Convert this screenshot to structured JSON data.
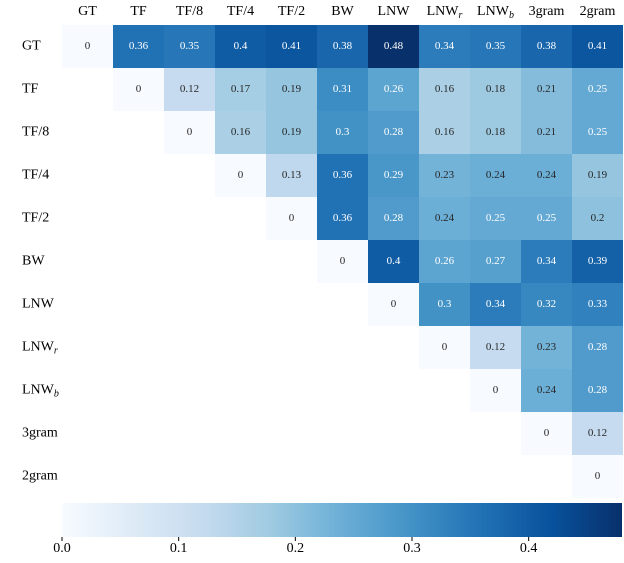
{
  "chart_data": {
    "type": "heatmap",
    "x_categories": [
      "GT",
      "TF",
      "TF/8",
      "TF/4",
      "TF/2",
      "BW",
      "LNW",
      "LNWr",
      "LNWb",
      "3gram",
      "2gram"
    ],
    "y_categories": [
      "GT",
      "TF",
      "TF/8",
      "TF/4",
      "TF/2",
      "BW",
      "LNW",
      "LNWr",
      "LNWb",
      "3gram",
      "2gram"
    ],
    "values": [
      [
        0,
        0.36,
        0.35,
        0.4,
        0.41,
        0.38,
        0.48,
        0.34,
        0.35,
        0.38,
        0.41
      ],
      [
        null,
        0,
        0.12,
        0.17,
        0.19,
        0.31,
        0.26,
        0.16,
        0.18,
        0.21,
        0.25
      ],
      [
        null,
        null,
        0,
        0.16,
        0.19,
        0.3,
        0.28,
        0.16,
        0.18,
        0.21,
        0.25
      ],
      [
        null,
        null,
        null,
        0,
        0.13,
        0.36,
        0.29,
        0.23,
        0.24,
        0.24,
        0.19
      ],
      [
        null,
        null,
        null,
        null,
        0,
        0.36,
        0.28,
        0.24,
        0.25,
        0.25,
        0.2
      ],
      [
        null,
        null,
        null,
        null,
        null,
        0,
        0.4,
        0.26,
        0.27,
        0.34,
        0.39
      ],
      [
        null,
        null,
        null,
        null,
        null,
        null,
        0,
        0.3,
        0.34,
        0.32,
        0.33
      ],
      [
        null,
        null,
        null,
        null,
        null,
        null,
        null,
        0,
        0.12,
        0.23,
        0.28
      ],
      [
        null,
        null,
        null,
        null,
        null,
        null,
        null,
        null,
        0,
        0.24,
        0.28
      ],
      [
        null,
        null,
        null,
        null,
        null,
        null,
        null,
        null,
        null,
        0,
        0.12
      ],
      [
        null,
        null,
        null,
        null,
        null,
        null,
        null,
        null,
        null,
        null,
        0
      ]
    ],
    "cmap": "Blues",
    "zlim": [
      0,
      0.48
    ],
    "zticks": [
      {
        "value": 0,
        "label": "0.0"
      },
      0.1,
      0.2,
      0.3,
      0.4
    ],
    "colorbar_location": "bottom"
  }
}
